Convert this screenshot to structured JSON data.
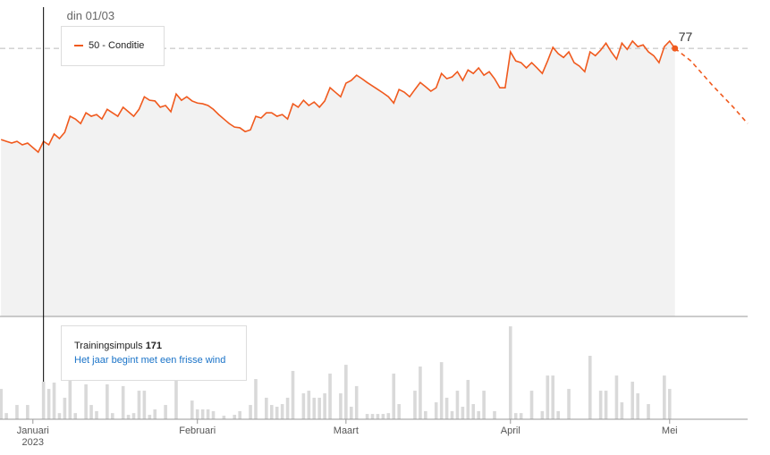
{
  "chart_data": [
    {
      "type": "line",
      "xlim": [
        -6.2,
        134.7
      ],
      "ylim": [
        0,
        90.9
      ],
      "cursor": {
        "label": "din 01/03",
        "x": 2,
        "value": 50,
        "separator": " - "
      },
      "series": [
        {
          "name": "Conditie",
          "color": "#f05a1e",
          "x": [
            -6,
            -5,
            -4,
            -3,
            -2,
            -1,
            0,
            1,
            2,
            3,
            4,
            5,
            6,
            7,
            8,
            9,
            10,
            11,
            12,
            13,
            14,
            15,
            16,
            17,
            18,
            19,
            20,
            21,
            22,
            23,
            24,
            25,
            26,
            27,
            28,
            29,
            30,
            31,
            32,
            33,
            34,
            35,
            36,
            37,
            38,
            39,
            40,
            41,
            42,
            43,
            44,
            45,
            46,
            47,
            48,
            49,
            50,
            51,
            52,
            53,
            54,
            55,
            56,
            57,
            58,
            59,
            60,
            61,
            62,
            63,
            64,
            65,
            66,
            67,
            68,
            69,
            70,
            71,
            72,
            73,
            74,
            75,
            76,
            77,
            78,
            79,
            80,
            81,
            82,
            83,
            84,
            85,
            86,
            87,
            88,
            89,
            90,
            91,
            92,
            93,
            94,
            95,
            96,
            97,
            98,
            99,
            100,
            101,
            102,
            103,
            104,
            105,
            106,
            107,
            108,
            109,
            110,
            111,
            112,
            113,
            114,
            115,
            116,
            117,
            118,
            119,
            120,
            121
          ],
          "values": [
            50.8,
            50.3,
            49.8,
            50.3,
            49.3,
            49.8,
            48.5,
            47.2,
            50.3,
            49.3,
            52.4,
            51.1,
            52.9,
            57.5,
            56.7,
            55.4,
            58.5,
            57.5,
            58,
            56.7,
            59.5,
            58.5,
            57.5,
            60.1,
            58.8,
            57.5,
            59.5,
            63.1,
            62.1,
            61.9,
            60.1,
            60.6,
            58.8,
            63.9,
            62.1,
            63.1,
            61.9,
            61.3,
            61.1,
            60.6,
            59.5,
            58,
            56.7,
            55.4,
            54.4,
            54.2,
            53.1,
            53.6,
            57.5,
            57,
            58.5,
            58.5,
            57.5,
            58,
            56.7,
            61.1,
            60.1,
            62.1,
            60.6,
            61.6,
            60.1,
            61.9,
            65.7,
            64.4,
            63.1,
            67,
            67.8,
            69.3,
            68.3,
            67.2,
            66.2,
            65.2,
            64.2,
            63.1,
            61.3,
            65.2,
            64.4,
            63.1,
            65.2,
            67.2,
            66,
            64.7,
            65.7,
            69.8,
            68.3,
            68.8,
            70.3,
            67.8,
            70.8,
            69.8,
            71.4,
            69.3,
            70.3,
            68.3,
            65.7,
            65.7,
            76,
            73.4,
            72.9,
            71.4,
            72.9,
            71.4,
            69.8,
            73.4,
            77.3,
            75.5,
            74.4,
            76,
            72.9,
            71.9,
            70.3,
            76,
            74.9,
            76.5,
            78.5,
            76,
            73.9,
            78.5,
            76.7,
            79.1,
            77.5,
            78,
            76,
            74.9,
            72.9,
            77.5,
            79.1,
            77
          ]
        }
      ],
      "projection": {
        "x": [
          121,
          124,
          128,
          132,
          134.7
        ],
        "values": [
          77,
          73.4,
          66.5,
          60.1,
          55.4
        ]
      }
    },
    {
      "type": "bar",
      "xlim": [
        -6.2,
        134.7
      ],
      "ylim": [
        0,
        464
      ],
      "color": "#d9d9d9",
      "xticks": [
        {
          "value": 0,
          "label": "Januari"
        },
        {
          "value": 31,
          "label": "Februari"
        },
        {
          "value": 59,
          "label": "Maart"
        },
        {
          "value": 90,
          "label": "April"
        },
        {
          "value": 120,
          "label": "Mei"
        }
      ],
      "year_label": "2023",
      "tooltip": {
        "title": "Trainingsimpuls",
        "value": 171,
        "message": "Het jaar begint met een frisse wind"
      },
      "x": [
        -6,
        -5,
        -3,
        -1,
        2,
        3,
        4,
        5,
        6,
        7,
        8,
        10,
        11,
        12,
        14,
        15,
        17,
        18,
        19,
        20,
        21,
        22,
        23,
        25,
        27,
        30,
        31,
        32,
        33,
        34,
        36,
        38,
        39,
        41,
        42,
        44,
        45,
        46,
        47,
        48,
        49,
        51,
        52,
        53,
        54,
        55,
        56,
        58,
        59,
        60,
        61,
        63,
        64,
        65,
        66,
        67,
        68,
        69,
        72,
        73,
        74,
        76,
        77,
        78,
        79,
        80,
        81,
        82,
        83,
        84,
        85,
        87,
        90,
        91,
        92,
        94,
        96,
        97,
        98,
        99,
        101,
        105,
        107,
        108,
        110,
        111,
        113,
        114,
        116,
        119,
        120
      ],
      "values": [
        138,
        28,
        65,
        65,
        171,
        138,
        167,
        28,
        98,
        179,
        28,
        159,
        65,
        37,
        159,
        28,
        151,
        20,
        28,
        130,
        130,
        20,
        45,
        65,
        179,
        85,
        45,
        45,
        45,
        37,
        16,
        20,
        37,
        65,
        183,
        98,
        65,
        57,
        69,
        98,
        220,
        118,
        130,
        98,
        98,
        118,
        208,
        118,
        248,
        57,
        151,
        24,
        24,
        24,
        24,
        28,
        208,
        69,
        130,
        240,
        37,
        77,
        260,
        98,
        37,
        130,
        57,
        179,
        69,
        37,
        130,
        37,
        423,
        28,
        28,
        130,
        37,
        199,
        199,
        37,
        138,
        289,
        130,
        130,
        199,
        77,
        171,
        118,
        69,
        199,
        138
      ]
    }
  ]
}
